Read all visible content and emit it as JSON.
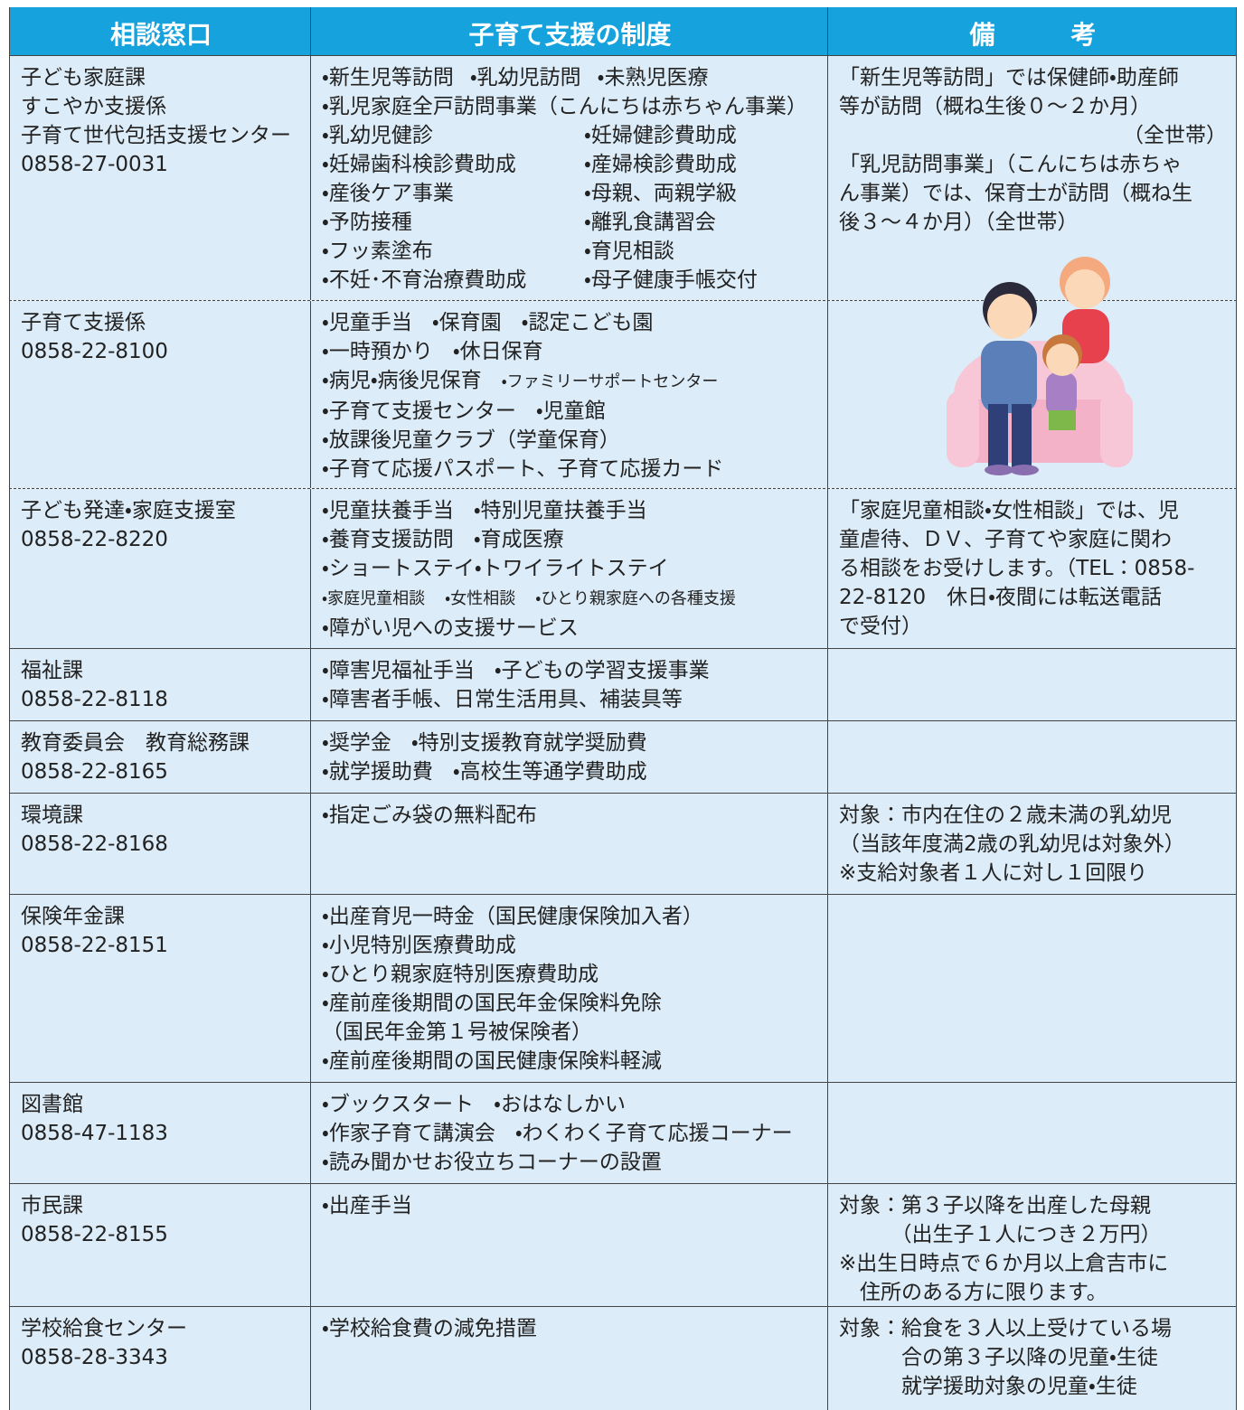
{
  "table": {
    "header": [
      "相談窓口",
      "子育て支援の制度",
      "備　　　考"
    ],
    "rows": [
      {
        "office": [
          "子ども家庭課",
          "すこやか支援係",
          "子育て世代包括支援センター",
          "0858-27-0031"
        ],
        "services": [
          [
            "・新生児等訪問",
            "・乳幼児訪問",
            "・未熟児医療"
          ],
          [
            "・乳児家庭全戸訪問事業（こんにちは赤ちゃん事業）"
          ],
          [
            "・乳幼児健診",
            "・妊婦健診費助成"
          ],
          [
            "・妊婦歯科検診費助成",
            "・産婦検診費助成"
          ],
          [
            "・産後ケア事業",
            "・母親、両親学級"
          ],
          [
            "・予防接種",
            "・離乳食講習会"
          ],
          [
            "・フッ素塗布",
            "・育児相談"
          ],
          [
            "・不妊･不育治療費助成",
            "・母子健康手帳交付"
          ]
        ],
        "notes": [
          "「新生児等訪問」では保健師・助産師",
          "等が訪問（概ね生後０～２か月）",
          "（全世帯）",
          "「乳児訪問事業」（こんにちは赤ちゃ",
          "ん事業）では、保育士が訪問（概ね生",
          "後３～４か月）（全世帯）"
        ]
      },
      {
        "office": [
          "子育て支援係",
          "0858-22-8100"
        ],
        "services": [
          [
            "・児童手当",
            "・保育園",
            "・認定こども園"
          ],
          [
            "・一時預かり",
            "・休日保育"
          ],
          [
            "・病児・病後児保育",
            "・ファミリーサポートセンター"
          ],
          [
            "・子育て支援センター",
            "・児童館"
          ],
          [
            "・放課後児童クラブ（学童保育）"
          ],
          [
            "・子育て応援パスポート、子育て応援カード"
          ]
        ],
        "notes": []
      },
      {
        "office": [
          "子ども発達・家庭支援室",
          "0858-22-8220"
        ],
        "services": [
          [
            "・児童扶養手当",
            "・特別児童扶養手当"
          ],
          [
            "・養育支援訪問",
            "・育成医療"
          ],
          [
            "・ショートステイ・トワイライトステイ"
          ],
          [
            "・家庭児童相談",
            "・女性相談",
            "・ひとり親家庭への各種支援"
          ],
          [
            "・障がい児への支援サービス"
          ]
        ],
        "notes": [
          "「家庭児童相談・女性相談」では、児",
          "童虐待、ＤＶ、子育てや家庭に関わ",
          "る相談をお受けします。（TEL：0858-",
          "22-8120　休日・夜間には転送電話",
          "で受付）"
        ]
      },
      {
        "office": [
          "福祉課",
          "0858-22-8118"
        ],
        "services": [
          [
            "・障害児福祉手当",
            "・子どもの学習支援事業"
          ],
          [
            "・障害者手帳、日常生活用具、補装具等"
          ]
        ],
        "notes": []
      },
      {
        "office": [
          "教育委員会　教育総務課",
          "0858-22-8165"
        ],
        "services": [
          [
            "・奨学金",
            "・特別支援教育就学奨励費"
          ],
          [
            "・就学援助費",
            "・高校生等通学費助成"
          ]
        ],
        "notes": []
      },
      {
        "office": [
          "環境課",
          "0858-22-8168"
        ],
        "services": [
          [
            "・指定ごみ袋の無料配布"
          ]
        ],
        "notes": [
          "対象：市内在住の２歳未満の乳幼児",
          "（当該年度満2歳の乳幼児は対象外）",
          "※支給対象者１人に対し１回限り"
        ]
      },
      {
        "office": [
          "保険年金課",
          "0858-22-8151"
        ],
        "services": [
          [
            "・出産育児一時金（国民健康保険加入者）"
          ],
          [
            "・小児特別医療費助成"
          ],
          [
            "・ひとり親家庭特別医療費助成"
          ],
          [
            "・産前産後期間の国民年金保険料免除"
          ],
          [
            "（国民年金第１号被保険者）"
          ],
          [
            "・産前産後期間の国民健康保険料軽減"
          ]
        ],
        "notes": []
      },
      {
        "office": [
          "図書館",
          "0858-47-1183"
        ],
        "services": [
          [
            "・ブックスタート",
            "・おはなしかい"
          ],
          [
            "・作家子育て講演会",
            "・わくわく子育て応援コーナー"
          ],
          [
            "・読み聞かせお役立ちコーナーの設置"
          ]
        ],
        "notes": []
      },
      {
        "office": [
          "市民課",
          "0858-22-8155"
        ],
        "services": [
          [
            "・出産手当"
          ]
        ],
        "notes": [
          "対象：第３子以降を出産した母親",
          "　　　（出生子１人につき２万円）",
          "※出生日時点で６か月以上倉吉市に",
          "　住所のある方に限ります。"
        ]
      },
      {
        "office": [
          "学校給食センター",
          "0858-28-3343"
        ],
        "services": [
          [
            "・学校給食費の減免措置"
          ]
        ],
        "notes": [
          "対象：給食を３人以上受けている場",
          "　　　合の第３子以降の児童・生徒",
          "　　　就学援助対象の児童・生徒"
        ]
      }
    ]
  }
}
